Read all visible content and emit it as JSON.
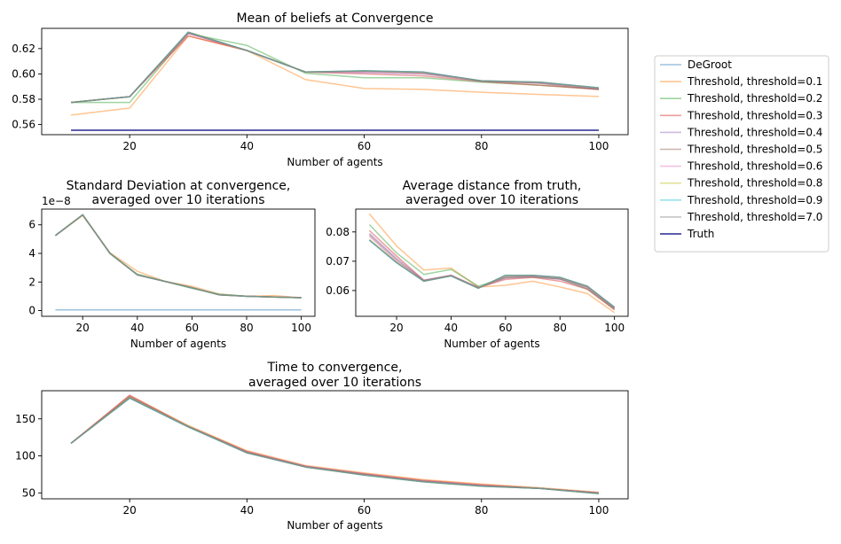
{
  "figure": {
    "legend": {
      "placement": "outside-right",
      "entries": [
        {
          "label": "DeGroot",
          "color": "#1f77b4"
        },
        {
          "label": "Threshold, threshold=0.1",
          "color": "#ff7f0e"
        },
        {
          "label": "Threshold, threshold=0.2",
          "color": "#2ca02c"
        },
        {
          "label": "Threshold, threshold=0.3",
          "color": "#d62728"
        },
        {
          "label": "Threshold, threshold=0.4",
          "color": "#9467bd"
        },
        {
          "label": "Threshold, threshold=0.5",
          "color": "#8c564b"
        },
        {
          "label": "Threshold, threshold=0.6",
          "color": "#e377c2"
        },
        {
          "label": "Threshold, threshold=0.8",
          "color": "#bcbd22"
        },
        {
          "label": "Threshold, threshold=0.9",
          "color": "#17becf"
        },
        {
          "label": "Threshold, threshold=7.0",
          "color": "#7f7f7f"
        },
        {
          "label": "Truth",
          "color": "#000080"
        }
      ]
    }
  },
  "chart_data": [
    {
      "type": "line",
      "title": "Mean of beliefs at Convergence",
      "xlabel": "Number of agents",
      "ylabel": "",
      "xlim": [
        5,
        105
      ],
      "ylim": [
        0.552,
        0.636
      ],
      "xticks": [
        20,
        40,
        60,
        80,
        100
      ],
      "xtick_labels": [
        "20",
        "40",
        "60",
        "80",
        "100"
      ],
      "yticks": [
        0.56,
        0.58,
        0.6,
        0.62
      ],
      "ytick_labels": [
        "0.56",
        "0.58",
        "0.60",
        "0.62"
      ],
      "offset_label": "",
      "grid": false,
      "x": [
        10,
        20,
        30,
        40,
        50,
        60,
        70,
        80,
        90,
        100
      ],
      "series": [
        {
          "name": "DeGroot",
          "values": [
            0.5775,
            0.582,
            0.633,
            0.6185,
            0.6015,
            0.6025,
            0.6015,
            0.5945,
            0.5935,
            0.589
          ]
        },
        {
          "name": "Threshold, threshold=0.1",
          "values": [
            0.5675,
            0.573,
            0.63,
            0.6185,
            0.5955,
            0.5885,
            0.5878,
            0.5855,
            0.5838,
            0.5822
          ]
        },
        {
          "name": "Threshold, threshold=0.2",
          "values": [
            0.5775,
            0.5775,
            0.632,
            0.6225,
            0.6005,
            0.597,
            0.597,
            0.5935,
            0.591,
            0.588
          ]
        },
        {
          "name": "Threshold, threshold=0.3",
          "values": [
            0.5775,
            0.582,
            0.63,
            0.6185,
            0.6015,
            0.6,
            0.5985,
            0.594,
            0.591,
            0.5878
          ]
        },
        {
          "name": "Threshold, threshold=0.4",
          "values": [
            0.5775,
            0.582,
            0.632,
            0.6185,
            0.6015,
            0.601,
            0.6,
            0.5943,
            0.5928,
            0.5884
          ]
        },
        {
          "name": "Threshold, threshold=0.5",
          "values": [
            0.5775,
            0.582,
            0.632,
            0.6185,
            0.6015,
            0.602,
            0.6005,
            0.5945,
            0.5925,
            0.5876
          ]
        },
        {
          "name": "Threshold, threshold=0.6",
          "values": [
            0.5775,
            0.582,
            0.632,
            0.6185,
            0.6015,
            0.6015,
            0.601,
            0.5945,
            0.593,
            0.5885
          ]
        },
        {
          "name": "Threshold, threshold=0.8",
          "values": [
            0.5775,
            0.582,
            0.633,
            0.6185,
            0.6015,
            0.6022,
            0.6013,
            0.5945,
            0.5935,
            0.589
          ]
        },
        {
          "name": "Threshold, threshold=0.9",
          "values": [
            0.5775,
            0.582,
            0.633,
            0.6185,
            0.6015,
            0.6025,
            0.6015,
            0.5945,
            0.5935,
            0.589
          ]
        },
        {
          "name": "Threshold, threshold=7.0",
          "values": [
            0.5775,
            0.582,
            0.633,
            0.6185,
            0.6015,
            0.6025,
            0.6015,
            0.5945,
            0.5935,
            0.589
          ]
        },
        {
          "name": "Truth",
          "values": [
            0.5555,
            0.5555,
            0.5555,
            0.5555,
            0.5555,
            0.5555,
            0.5555,
            0.5555,
            0.5555,
            0.5555
          ]
        }
      ]
    },
    {
      "type": "line",
      "title": "Standard Deviation at convergence,\naveraged over 10 iterations",
      "xlabel": "Number of agents",
      "ylabel": "",
      "xlim": [
        5,
        105
      ],
      "ylim": [
        -0.4,
        7.1
      ],
      "xticks": [
        20,
        40,
        60,
        80,
        100
      ],
      "xtick_labels": [
        "20",
        "40",
        "60",
        "80",
        "100"
      ],
      "yticks": [
        0,
        2,
        4,
        6
      ],
      "ytick_labels": [
        "0",
        "2",
        "4",
        "6"
      ],
      "offset_label": "1e−8",
      "grid": false,
      "x": [
        10,
        20,
        30,
        40,
        50,
        60,
        70,
        80,
        90,
        100
      ],
      "series": [
        {
          "name": "DeGroot",
          "values": [
            0.05,
            0.05,
            0.05,
            0.05,
            0.05,
            0.05,
            0.05,
            0.05,
            0.05,
            0.05
          ]
        },
        {
          "name": "Threshold, threshold=0.1",
          "values": [
            5.25,
            6.65,
            4.05,
            2.75,
            2.05,
            1.7,
            1.15,
            1.0,
            1.05,
            0.9
          ]
        },
        {
          "name": "Threshold, threshold=0.2",
          "values": [
            5.25,
            6.7,
            4.0,
            2.55,
            2.05,
            1.55,
            1.15,
            1.0,
            0.95,
            0.9
          ]
        },
        {
          "name": "Threshold, threshold=0.3",
          "values": [
            5.25,
            6.7,
            4.0,
            2.5,
            2.05,
            1.6,
            1.1,
            1.0,
            0.95,
            0.9
          ]
        },
        {
          "name": "Threshold, threshold=0.4",
          "values": [
            5.25,
            6.7,
            4.0,
            2.5,
            2.05,
            1.6,
            1.1,
            1.0,
            0.95,
            0.9
          ]
        },
        {
          "name": "Threshold, threshold=0.5",
          "values": [
            5.25,
            6.7,
            4.0,
            2.5,
            2.05,
            1.6,
            1.1,
            1.0,
            0.95,
            0.9
          ]
        },
        {
          "name": "Threshold, threshold=0.6",
          "values": [
            5.25,
            6.7,
            4.0,
            2.5,
            2.05,
            1.6,
            1.1,
            1.0,
            0.95,
            0.9
          ]
        },
        {
          "name": "Threshold, threshold=0.8",
          "values": [
            5.25,
            6.7,
            4.0,
            2.5,
            2.05,
            1.6,
            1.1,
            1.0,
            0.95,
            0.9
          ]
        },
        {
          "name": "Threshold, threshold=0.9",
          "values": [
            5.25,
            6.7,
            4.0,
            2.5,
            2.05,
            1.6,
            1.1,
            1.0,
            0.95,
            0.9
          ]
        },
        {
          "name": "Threshold, threshold=7.0",
          "values": [
            5.25,
            6.7,
            4.0,
            2.5,
            2.05,
            1.6,
            1.1,
            1.0,
            0.95,
            0.9
          ]
        }
      ]
    },
    {
      "type": "line",
      "title": "Average distance from truth,\naveraged over 10 iterations",
      "xlabel": "Number of agents",
      "ylabel": "",
      "xlim": [
        5,
        105
      ],
      "ylim": [
        0.0512,
        0.0878
      ],
      "xticks": [
        20,
        40,
        60,
        80,
        100
      ],
      "xtick_labels": [
        "20",
        "40",
        "60",
        "80",
        "100"
      ],
      "yticks": [
        0.06,
        0.07,
        0.08
      ],
      "ytick_labels": [
        "0.06",
        "0.07",
        "0.08"
      ],
      "offset_label": "",
      "grid": false,
      "x": [
        10,
        20,
        30,
        40,
        50,
        60,
        70,
        80,
        90,
        100
      ],
      "series": [
        {
          "name": "DeGroot",
          "values": [
            0.0772,
            0.0695,
            0.0632,
            0.065,
            0.0608,
            0.0652,
            0.0652,
            0.0645,
            0.0615,
            0.0543
          ]
        },
        {
          "name": "Threshold, threshold=0.1",
          "values": [
            0.0862,
            0.0752,
            0.067,
            0.0677,
            0.0612,
            0.0618,
            0.0632,
            0.0612,
            0.059,
            0.0525
          ]
        },
        {
          "name": "Threshold, threshold=0.2",
          "values": [
            0.0825,
            0.0728,
            0.0655,
            0.0672,
            0.0615,
            0.0645,
            0.0645,
            0.064,
            0.0605,
            0.0535
          ]
        },
        {
          "name": "Threshold, threshold=0.3",
          "values": [
            0.0805,
            0.0718,
            0.0635,
            0.0652,
            0.061,
            0.0638,
            0.0645,
            0.0632,
            0.0605,
            0.0535
          ]
        },
        {
          "name": "Threshold, threshold=0.4",
          "values": [
            0.0795,
            0.071,
            0.0635,
            0.0652,
            0.061,
            0.0642,
            0.0648,
            0.0638,
            0.061,
            0.0538
          ]
        },
        {
          "name": "Threshold, threshold=0.5",
          "values": [
            0.079,
            0.0705,
            0.0634,
            0.0651,
            0.0609,
            0.0645,
            0.065,
            0.064,
            0.0612,
            0.054
          ]
        },
        {
          "name": "Threshold, threshold=0.6",
          "values": [
            0.0785,
            0.07,
            0.0633,
            0.0651,
            0.0609,
            0.0648,
            0.065,
            0.0642,
            0.0613,
            0.0541
          ]
        },
        {
          "name": "Threshold, threshold=0.8",
          "values": [
            0.0775,
            0.0697,
            0.0632,
            0.065,
            0.0608,
            0.065,
            0.0652,
            0.0644,
            0.0614,
            0.0542
          ]
        },
        {
          "name": "Threshold, threshold=0.9",
          "values": [
            0.0772,
            0.0695,
            0.0632,
            0.065,
            0.0608,
            0.0652,
            0.0652,
            0.0645,
            0.0615,
            0.0543
          ]
        },
        {
          "name": "Threshold, threshold=7.0",
          "values": [
            0.0772,
            0.0695,
            0.0632,
            0.065,
            0.0608,
            0.0652,
            0.0652,
            0.0645,
            0.0615,
            0.0543
          ]
        }
      ]
    },
    {
      "type": "line",
      "title": "Time to convergence,\naveraged over 10 iterations",
      "xlabel": "Number of agents",
      "ylabel": "",
      "xlim": [
        5,
        105
      ],
      "ylim": [
        42,
        188
      ],
      "xticks": [
        20,
        40,
        60,
        80,
        100
      ],
      "xtick_labels": [
        "20",
        "40",
        "60",
        "80",
        "100"
      ],
      "yticks": [
        50,
        100,
        150
      ],
      "ytick_labels": [
        "50",
        "100",
        "150"
      ],
      "offset_label": "",
      "grid": false,
      "x": [
        10,
        20,
        30,
        40,
        50,
        60,
        70,
        80,
        90,
        100
      ],
      "series": [
        {
          "name": "DeGroot",
          "values": [
            117,
            178,
            139,
            104,
            85,
            74,
            65,
            59,
            56,
            49
          ]
        },
        {
          "name": "Threshold, threshold=0.1",
          "values": [
            117,
            181,
            141,
            107,
            87,
            77,
            68,
            62,
            57,
            51
          ]
        },
        {
          "name": "Threshold, threshold=0.2",
          "values": [
            117,
            179,
            140,
            105,
            85,
            75,
            66,
            60,
            56,
            50
          ]
        },
        {
          "name": "Threshold, threshold=0.3",
          "values": [
            117,
            182,
            140,
            106,
            86,
            76,
            67,
            61,
            56,
            50
          ]
        },
        {
          "name": "Threshold, threshold=0.4",
          "values": [
            117,
            180,
            140,
            105,
            86,
            75,
            66,
            60,
            56,
            50
          ]
        },
        {
          "name": "Threshold, threshold=0.5",
          "values": [
            117,
            180,
            140,
            105,
            85,
            75,
            66,
            60,
            56,
            50
          ]
        },
        {
          "name": "Threshold, threshold=0.6",
          "values": [
            117,
            179,
            140,
            105,
            85,
            75,
            66,
            60,
            56,
            50
          ]
        },
        {
          "name": "Threshold, threshold=0.8",
          "values": [
            117,
            179,
            140,
            104,
            85,
            74,
            65,
            59,
            56,
            49
          ]
        },
        {
          "name": "Threshold, threshold=0.9",
          "values": [
            117,
            178,
            139,
            104,
            85,
            74,
            65,
            59,
            56,
            49
          ]
        },
        {
          "name": "Threshold, threshold=7.0",
          "values": [
            117,
            178,
            139,
            104,
            85,
            74,
            65,
            59,
            56,
            49
          ]
        }
      ]
    }
  ]
}
